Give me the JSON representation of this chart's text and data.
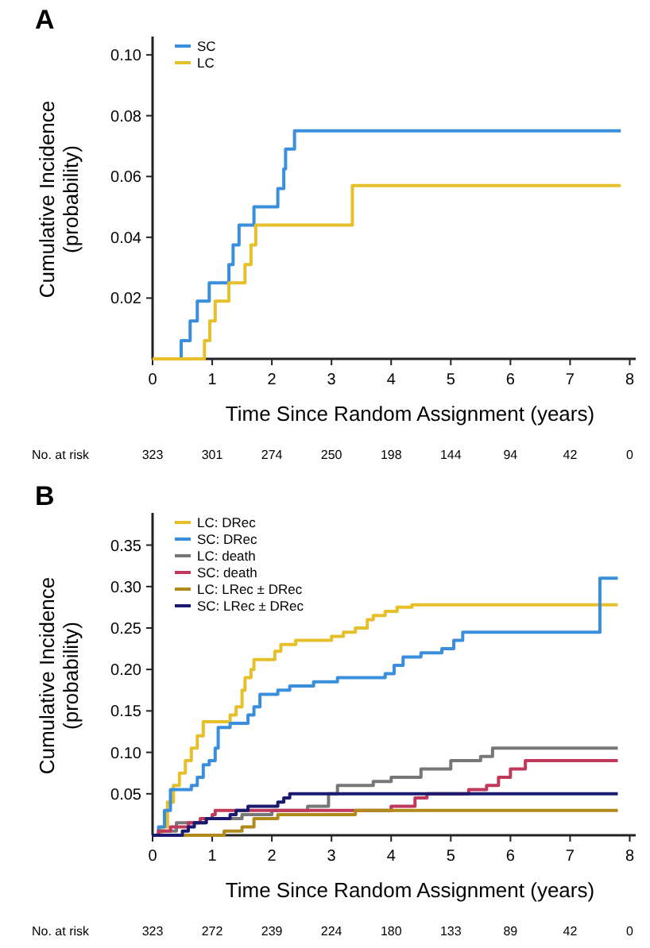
{
  "chart_data": [
    {
      "type": "step",
      "title": "A",
      "xlabel": "Time Since Random Assignment (years)",
      "ylabel": "Cumulative Incidence\n(probability)",
      "xlim": [
        0,
        8.1
      ],
      "ylim": [
        0,
        0.105
      ],
      "xticks": [
        0,
        1,
        2,
        3,
        4,
        5,
        6,
        7,
        8
      ],
      "yticks": [
        {
          "value": 0.02,
          "label": "0.02"
        },
        {
          "value": 0.04,
          "label": "0.04"
        },
        {
          "value": 0.06,
          "label": "0.06"
        },
        {
          "value": 0.08,
          "label": "0.08"
        },
        {
          "value": 0.1,
          "label": "0.10"
        }
      ],
      "legend": "top left",
      "grid": false,
      "annotations": [
        "No. at risk",
        "323",
        "301",
        "274",
        "250",
        "198",
        "144",
        "94",
        "42",
        "0"
      ],
      "series": [
        {
          "name": "SC",
          "color": "#3a8fdc",
          "x": [
            0,
            0.48,
            0.63,
            0.75,
            0.95,
            1.28,
            1.35,
            1.45,
            1.7,
            2.1,
            2.2,
            2.23,
            2.38,
            7.85
          ],
          "values": [
            0,
            0.006,
            0.0125,
            0.019,
            0.025,
            0.031,
            0.0375,
            0.044,
            0.05,
            0.056,
            0.0625,
            0.069,
            0.075,
            0.075
          ]
        },
        {
          "name": "LC",
          "color": "#e6c02a",
          "x": [
            0,
            0.87,
            0.96,
            1.05,
            1.28,
            1.55,
            1.65,
            1.73,
            3.35,
            7.85
          ],
          "values": [
            0,
            0.006,
            0.0125,
            0.019,
            0.025,
            0.031,
            0.0375,
            0.044,
            0.057,
            0.057
          ]
        }
      ]
    },
    {
      "type": "step",
      "title": "B",
      "xlabel": "Time Since Random Assignment (years)",
      "ylabel": "Cumulative Incidence\n(probability)",
      "xlim": [
        0,
        8.1
      ],
      "ylim": [
        0,
        0.385
      ],
      "xticks": [
        0,
        1,
        2,
        3,
        4,
        5,
        6,
        7,
        8
      ],
      "yticks": [
        0.05,
        {
          "value": 0.1,
          "label": "0.10"
        },
        0.15,
        {
          "value": 0.2,
          "label": "0.20"
        },
        0.25,
        {
          "value": 0.3,
          "label": "0.30"
        },
        0.35
      ],
      "legend": "top left",
      "grid": false,
      "annotations": [
        "No. at risk",
        "323",
        "272",
        "239",
        "224",
        "180",
        "133",
        "89",
        "42",
        "0"
      ],
      "series": [
        {
          "name": "LC: DRec",
          "color": "#e6c02a",
          "x": [
            0,
            0.15,
            0.25,
            0.35,
            0.45,
            0.55,
            0.65,
            0.75,
            0.85,
            1.3,
            1.4,
            1.5,
            1.55,
            1.65,
            1.7,
            2.05,
            2.15,
            2.4,
            3.0,
            3.2,
            3.4,
            3.6,
            3.7,
            3.9,
            4.1,
            4.35,
            7.8
          ],
          "values": [
            0,
            0.01,
            0.04,
            0.06,
            0.075,
            0.09,
            0.105,
            0.12,
            0.137,
            0.145,
            0.155,
            0.175,
            0.19,
            0.2,
            0.212,
            0.222,
            0.23,
            0.235,
            0.24,
            0.245,
            0.25,
            0.26,
            0.265,
            0.27,
            0.275,
            0.278,
            0.278
          ]
        },
        {
          "name": "SC: DRec",
          "color": "#3a8fdc",
          "x": [
            0,
            0.1,
            0.2,
            0.3,
            0.65,
            0.75,
            0.85,
            0.95,
            1.05,
            1.1,
            1.3,
            1.6,
            1.7,
            1.8,
            2.1,
            2.3,
            2.7,
            3.1,
            3.9,
            4.05,
            4.2,
            4.5,
            4.85,
            5.05,
            5.2,
            7.5,
            7.8
          ],
          "values": [
            0,
            0.01,
            0.03,
            0.055,
            0.06,
            0.07,
            0.085,
            0.09,
            0.105,
            0.13,
            0.135,
            0.145,
            0.155,
            0.17,
            0.175,
            0.18,
            0.185,
            0.19,
            0.195,
            0.205,
            0.215,
            0.22,
            0.225,
            0.235,
            0.245,
            0.31,
            0.31
          ]
        },
        {
          "name": "LC: death",
          "color": "#777777",
          "x": [
            0,
            0.1,
            0.4,
            0.9,
            1.5,
            2.0,
            2.6,
            2.95,
            3.1,
            3.7,
            4.0,
            4.5,
            5.0,
            5.5,
            5.7,
            7.8
          ],
          "values": [
            0,
            0.005,
            0.015,
            0.02,
            0.025,
            0.03,
            0.035,
            0.05,
            0.06,
            0.065,
            0.07,
            0.08,
            0.09,
            0.095,
            0.105,
            0.105
          ]
        },
        {
          "name": "SC: death",
          "color": "#c0395a",
          "x": [
            0,
            0.1,
            0.3,
            0.6,
            0.8,
            1.0,
            1.05,
            4.0,
            4.4,
            4.6,
            5.3,
            5.6,
            5.8,
            6.0,
            6.25,
            7.8
          ],
          "values": [
            0,
            0.005,
            0.01,
            0.015,
            0.02,
            0.025,
            0.03,
            0.035,
            0.045,
            0.05,
            0.055,
            0.06,
            0.07,
            0.08,
            0.09,
            0.09
          ]
        },
        {
          "name": "LC: LRec ± DRec",
          "color": "#b08a1a",
          "x": [
            0,
            1.2,
            1.5,
            1.7,
            2.1,
            3.4,
            7.8
          ],
          "values": [
            0,
            0.005,
            0.01,
            0.02,
            0.025,
            0.03,
            0.03
          ]
        },
        {
          "name": "SC: LRec ± DRec",
          "color": "#1a1a70",
          "x": [
            0,
            0.5,
            0.6,
            0.7,
            0.9,
            1.3,
            1.4,
            1.6,
            2.1,
            2.2,
            2.3,
            7.8
          ],
          "values": [
            0,
            0.005,
            0.01,
            0.015,
            0.02,
            0.025,
            0.03,
            0.035,
            0.04,
            0.045,
            0.05,
            0.05
          ]
        }
      ]
    }
  ]
}
